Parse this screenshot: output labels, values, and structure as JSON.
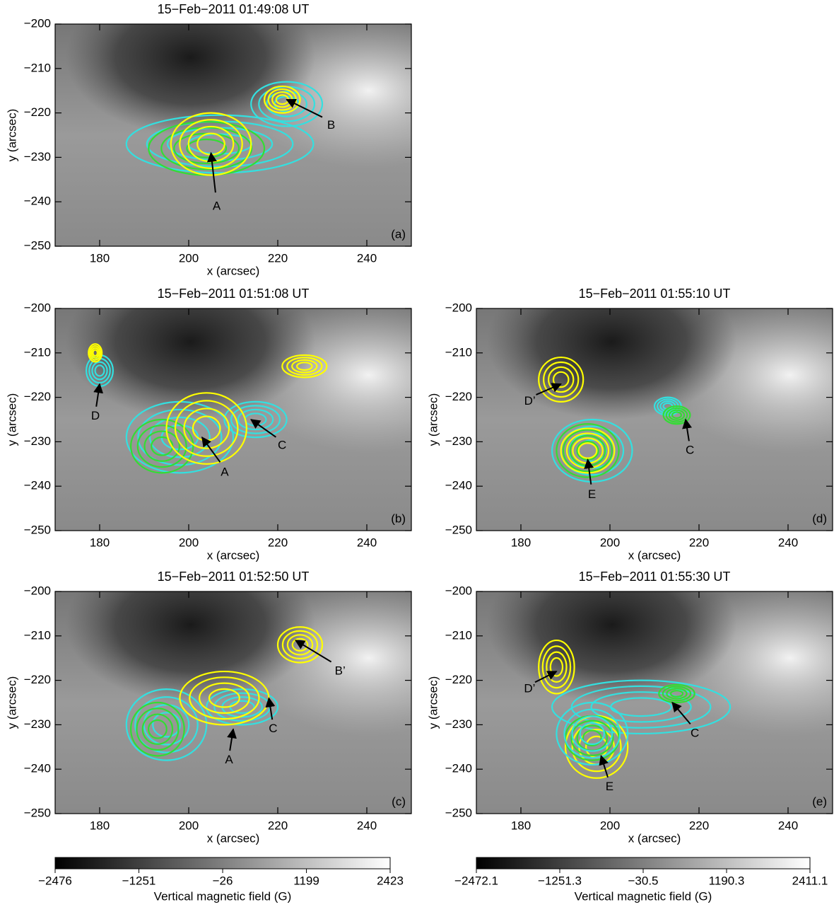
{
  "chart_data": [
    {
      "type": "image",
      "title": "15−Feb−2011 01:49:08 UT",
      "xlabel": "x (arcsec)",
      "ylabel": "y (arcsec)",
      "panel_label": "(a)",
      "xlim": [
        170,
        250
      ],
      "ylim": [
        -250,
        -200
      ],
      "xticks": [
        180,
        200,
        220,
        240
      ],
      "yticks": [
        {
          "value": -250,
          "label": "−250"
        },
        {
          "value": -240,
          "label": "−240"
        },
        {
          "value": -230,
          "label": "−230"
        },
        {
          "value": -220,
          "label": "−220"
        },
        {
          "value": -210,
          "label": "−210"
        },
        {
          "value": -200,
          "label": "−200"
        }
      ],
      "contours": [
        {
          "color": "#33e0e0",
          "x": 207,
          "y": -227,
          "rx": 21,
          "ry": 6.5
        },
        {
          "color": "#33e0e0",
          "x": 222,
          "y": -218,
          "rx": 8,
          "ry": 5
        },
        {
          "color": "#33dd33",
          "x": 204,
          "y": -228,
          "rx": 13,
          "ry": 6
        },
        {
          "color": "#ffff00",
          "x": 205,
          "y": -227,
          "rx": 9,
          "ry": 7
        },
        {
          "color": "#ffff00",
          "x": 221,
          "y": -217,
          "rx": 4,
          "ry": 3
        }
      ],
      "annotations": [
        {
          "label": "A",
          "x": 205,
          "y": -229
        },
        {
          "label": "B",
          "x": 222,
          "y": -217
        }
      ]
    },
    {
      "type": "image",
      "title": "15−Feb−2011 01:51:08 UT",
      "xlabel": "x (arcsec)",
      "ylabel": "y (arcsec)",
      "panel_label": "(b)",
      "xlim": [
        170,
        250
      ],
      "ylim": [
        -250,
        -200
      ],
      "xticks": [
        180,
        200,
        220,
        240
      ],
      "yticks": [
        {
          "value": -250,
          "label": "−250"
        },
        {
          "value": -240,
          "label": "−240"
        },
        {
          "value": -230,
          "label": "−230"
        },
        {
          "value": -220,
          "label": "−220"
        },
        {
          "value": -210,
          "label": "−210"
        },
        {
          "value": -200,
          "label": "−200"
        }
      ],
      "contours": [
        {
          "color": "#33e0e0",
          "x": 180,
          "y": -214,
          "rx": 3,
          "ry": 3.5
        },
        {
          "color": "#ffff00",
          "x": 179,
          "y": -210,
          "rx": 1.5,
          "ry": 2
        },
        {
          "color": "#33e0e0",
          "x": 198,
          "y": -229,
          "rx": 12,
          "ry": 8
        },
        {
          "color": "#33e0e0",
          "x": 215,
          "y": -225,
          "rx": 7,
          "ry": 4
        },
        {
          "color": "#33dd33",
          "x": 194,
          "y": -231,
          "rx": 7,
          "ry": 6
        },
        {
          "color": "#ffff00",
          "x": 204,
          "y": -227,
          "rx": 9,
          "ry": 8
        },
        {
          "color": "#ffff00",
          "x": 226,
          "y": -213,
          "rx": 5,
          "ry": 2.5
        }
      ],
      "annotations": [
        {
          "label": "D",
          "x": 180,
          "y": -217
        },
        {
          "label": "A",
          "x": 203,
          "y": -229
        },
        {
          "label": "C",
          "x": 214,
          "y": -225
        }
      ]
    },
    {
      "type": "image",
      "title": "15−Feb−2011 01:52:50 UT",
      "xlabel": "x (arcsec)",
      "ylabel": "y (arcsec)",
      "panel_label": "(c)",
      "xlim": [
        170,
        250
      ],
      "ylim": [
        -250,
        -200
      ],
      "xticks": [
        180,
        200,
        220,
        240
      ],
      "yticks": [
        {
          "value": -250,
          "label": "−250"
        },
        {
          "value": -240,
          "label": "−240"
        },
        {
          "value": -230,
          "label": "−230"
        },
        {
          "value": -220,
          "label": "−220"
        },
        {
          "value": -210,
          "label": "−210"
        },
        {
          "value": -200,
          "label": "−200"
        }
      ],
      "contours": [
        {
          "color": "#33e0e0",
          "x": 195,
          "y": -230,
          "rx": 9,
          "ry": 8
        },
        {
          "color": "#33dd33",
          "x": 193,
          "y": -231,
          "rx": 6,
          "ry": 6
        },
        {
          "color": "#33e0e0",
          "x": 212,
          "y": -226,
          "rx": 8,
          "ry": 4
        },
        {
          "color": "#ffff00",
          "x": 208,
          "y": -224,
          "rx": 10,
          "ry": 6
        },
        {
          "color": "#ffff00",
          "x": 225,
          "y": -212,
          "rx": 5,
          "ry": 4
        }
      ],
      "annotations": [
        {
          "label": "B’",
          "x": 224,
          "y": -211
        },
        {
          "label": "A",
          "x": 210,
          "y": -231
        },
        {
          "label": "C",
          "x": 218,
          "y": -224
        }
      ]
    },
    {
      "type": "image",
      "title": "15−Feb−2011 01:55:10 UT",
      "xlabel": "x (arcsec)",
      "ylabel": "y (arcsec)",
      "panel_label": "(d)",
      "xlim": [
        170,
        250
      ],
      "ylim": [
        -250,
        -200
      ],
      "xticks": [
        180,
        200,
        220,
        240
      ],
      "yticks": [
        {
          "value": -250,
          "label": "−250"
        },
        {
          "value": -240,
          "label": "−240"
        },
        {
          "value": -230,
          "label": "−230"
        },
        {
          "value": -220,
          "label": "−220"
        },
        {
          "value": -210,
          "label": "−210"
        },
        {
          "value": -200,
          "label": "−200"
        }
      ],
      "contours": [
        {
          "color": "#ffff00",
          "x": 189,
          "y": -216,
          "rx": 5,
          "ry": 5
        },
        {
          "color": "#33e0e0",
          "x": 213,
          "y": -222,
          "rx": 3,
          "ry": 2
        },
        {
          "color": "#33dd33",
          "x": 215,
          "y": -224,
          "rx": 3,
          "ry": 2
        },
        {
          "color": "#33e0e0",
          "x": 196,
          "y": -232,
          "rx": 9,
          "ry": 7
        },
        {
          "color": "#33dd33",
          "x": 195,
          "y": -232,
          "rx": 7,
          "ry": 6
        },
        {
          "color": "#ffff00",
          "x": 195,
          "y": -232,
          "rx": 6,
          "ry": 5
        }
      ],
      "annotations": [
        {
          "label": "D’",
          "x": 189,
          "y": -217
        },
        {
          "label": "C",
          "x": 217,
          "y": -225
        },
        {
          "label": "E",
          "x": 195,
          "y": -234
        }
      ]
    },
    {
      "type": "image",
      "title": "15−Feb−2011 01:55:30 UT",
      "xlabel": "x (arcsec)",
      "ylabel": "y (arcsec)",
      "panel_label": "(e)",
      "xlim": [
        170,
        250
      ],
      "ylim": [
        -250,
        -200
      ],
      "xticks": [
        180,
        200,
        220,
        240
      ],
      "yticks": [
        {
          "value": -250,
          "label": "−250"
        },
        {
          "value": -240,
          "label": "−240"
        },
        {
          "value": -230,
          "label": "−230"
        },
        {
          "value": -220,
          "label": "−220"
        },
        {
          "value": -210,
          "label": "−210"
        },
        {
          "value": -200,
          "label": "−200"
        }
      ],
      "contours": [
        {
          "color": "#ffff00",
          "x": 188,
          "y": -217,
          "rx": 4,
          "ry": 6
        },
        {
          "color": "#33e0e0",
          "x": 207,
          "y": -226,
          "rx": 20,
          "ry": 6
        },
        {
          "color": "#ffff00",
          "x": 197,
          "y": -235,
          "rx": 7,
          "ry": 7
        },
        {
          "color": "#33dd33",
          "x": 196,
          "y": -233,
          "rx": 6,
          "ry": 5
        },
        {
          "color": "#33e0e0",
          "x": 196,
          "y": -232,
          "rx": 8,
          "ry": 7
        },
        {
          "color": "#33dd33",
          "x": 215,
          "y": -223,
          "rx": 4,
          "ry": 2
        }
      ],
      "annotations": [
        {
          "label": "D’",
          "x": 188,
          "y": -218
        },
        {
          "label": "C",
          "x": 214,
          "y": -225
        },
        {
          "label": "E",
          "x": 198,
          "y": -237
        }
      ]
    },
    {
      "type": "colorbar",
      "xlabel": "Vertical magnetic field (G)",
      "xlim": [
        -2476,
        2423
      ],
      "xticks": [
        {
          "value": -2476,
          "label": "−2476"
        },
        {
          "value": -1251,
          "label": "−1251"
        },
        {
          "value": -26,
          "label": "−26"
        },
        1199,
        2423
      ],
      "colors": [
        "#000000",
        "#ffffff"
      ]
    },
    {
      "type": "colorbar",
      "xlabel": "Vertical magnetic field (G)",
      "xlim": [
        -2472.1,
        2411.1
      ],
      "xticks": [
        {
          "value": -2472.1,
          "label": "−2472.1"
        },
        {
          "value": -1251.3,
          "label": "−1251.3"
        },
        {
          "value": -30.5,
          "label": "−30.5"
        },
        1190.3,
        2411.1
      ],
      "colors": [
        "#000000",
        "#ffffff"
      ]
    }
  ]
}
